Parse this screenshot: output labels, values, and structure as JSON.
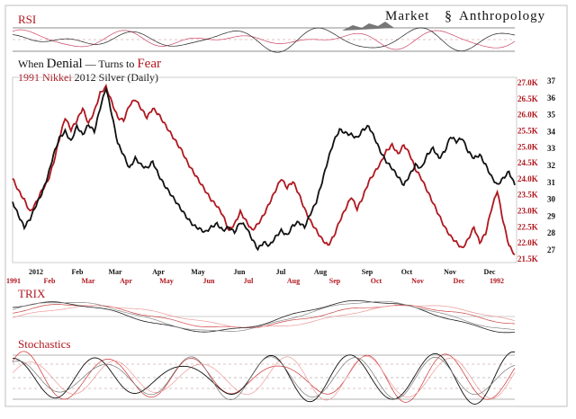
{
  "brand": {
    "left": "Market",
    "right": "Anthropology"
  },
  "title": {
    "line1_a": "When ",
    "line1_b": "Denial",
    "line1_c": " — Turns to ",
    "line1_d": "Fear",
    "line2_a": "1991 Nikkei",
    "line2_b": " 2012 Silver (Daily)"
  },
  "panels": {
    "rsi": "RSI",
    "trix": "TRIX",
    "stoch": "Stochastics"
  },
  "colors": {
    "nikkei": "#b0171f",
    "silver": "#111111"
  },
  "chart_data": {
    "type": "line",
    "title": "When Denial — Turns to Fear",
    "subtitle": "1991 Nikkei 2012 Silver (Daily)",
    "x_top_labels": [
      "2012",
      "Feb",
      "Mar",
      "Apr",
      "May",
      "Jun",
      "Jul",
      "Aug",
      "Sep",
      "Oct",
      "Nov",
      "Dec"
    ],
    "x_bottom_labels": [
      "1991",
      "Feb",
      "Mar",
      "Apr",
      "May",
      "Jun",
      "Jul",
      "Aug",
      "Sep",
      "Oct",
      "Nov",
      "Dec",
      "1992"
    ],
    "left_axis_ticks": [],
    "nikkei_axis": {
      "ticks": [
        "27.0K",
        "26.5K",
        "26.0K",
        "25.5K",
        "25.0K",
        "24.5K",
        "24.0K",
        "23.5K",
        "23.0K",
        "22.5K",
        "22.0K",
        "21.5K"
      ],
      "ylim": [
        21.3,
        27.2
      ]
    },
    "silver_axis": {
      "ticks": [
        "37",
        "36",
        "35",
        "34",
        "33",
        "32",
        "31",
        "30",
        "29",
        "28",
        "27"
      ],
      "ylim": [
        26.5,
        37.2
      ]
    },
    "series": [
      {
        "name": "1991 Nikkei",
        "axis": "left",
        "color": "#b0171f",
        "values": [
          24.0,
          23.6,
          23.3,
          22.9,
          23.2,
          23.6,
          23.9,
          24.5,
          25.3,
          26.0,
          25.6,
          25.9,
          26.3,
          25.8,
          26.2,
          26.8,
          27.0,
          26.5,
          26.0,
          25.9,
          26.4,
          26.6,
          26.3,
          26.0,
          26.3,
          26.1,
          25.8,
          25.5,
          25.2,
          24.9,
          24.5,
          24.2,
          23.9,
          23.6,
          23.3,
          23.1,
          22.8,
          22.3,
          22.5,
          22.9,
          22.6,
          22.3,
          22.5,
          22.8,
          23.2,
          23.6,
          24.0,
          23.7,
          23.9,
          23.5,
          23.0,
          22.6,
          22.3,
          22.0,
          21.8,
          22.1,
          22.6,
          23.0,
          23.4,
          23.0,
          23.4,
          23.9,
          24.2,
          24.5,
          24.9,
          25.1,
          24.8,
          25.1,
          24.8,
          24.3,
          24.0,
          23.6,
          23.2,
          22.8,
          22.4,
          22.1,
          21.9,
          21.7,
          22.0,
          22.4,
          21.9,
          22.2,
          23.0,
          23.6,
          22.6,
          21.8,
          21.5
        ]
      },
      {
        "name": "2012 Silver",
        "axis": "right",
        "color": "#111111",
        "values": [
          30.0,
          29.2,
          28.5,
          29.0,
          29.8,
          30.5,
          31.5,
          32.8,
          33.8,
          34.2,
          33.6,
          34.5,
          34.0,
          34.6,
          34.2,
          35.6,
          36.8,
          35.2,
          33.5,
          32.8,
          32.0,
          32.6,
          32.2,
          32.0,
          32.4,
          31.6,
          31.0,
          30.5,
          30.0,
          29.5,
          29.0,
          28.6,
          28.4,
          28.2,
          28.5,
          28.7,
          28.3,
          28.5,
          28.2,
          28.8,
          28.5,
          27.8,
          27.2,
          27.6,
          27.4,
          27.9,
          28.3,
          28.0,
          28.6,
          28.8,
          28.5,
          29.3,
          30.0,
          31.2,
          32.5,
          33.6,
          34.3,
          34.1,
          34.0,
          33.8,
          34.3,
          34.5,
          33.8,
          33.0,
          32.4,
          32.0,
          31.5,
          31.0,
          31.6,
          32.2,
          32.0,
          32.8,
          33.2,
          32.6,
          33.0,
          33.9,
          33.6,
          33.8,
          33.0,
          32.6,
          32.8,
          32.2,
          31.5,
          31.0,
          31.4,
          31.8,
          31.0
        ]
      }
    ],
    "indicators": {
      "rsi": {
        "silver": [],
        "nikkei": []
      },
      "trix": {
        "silver": [],
        "nikkei": []
      },
      "stochastics": {
        "silver": [],
        "nikkei": []
      }
    }
  }
}
